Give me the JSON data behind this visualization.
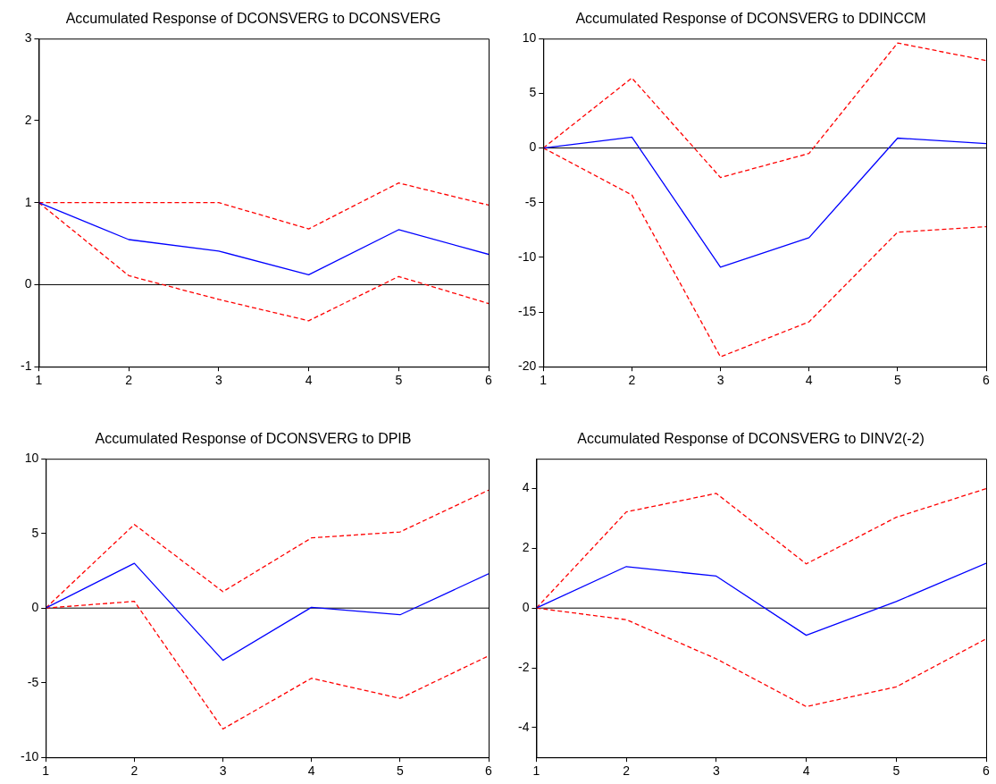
{
  "chart_data": [
    {
      "type": "line",
      "title": "Accumulated Response of DCONSVERG to DCONSVERG",
      "x": [
        1,
        2,
        3,
        4,
        5,
        6
      ],
      "xlim": [
        1,
        6
      ],
      "xticks": [
        1,
        2,
        3,
        4,
        5,
        6
      ],
      "ylim": [
        -1,
        3
      ],
      "yticks": [
        -1,
        0,
        1,
        2,
        3
      ],
      "grid": false,
      "legend": false,
      "ref_lines": [
        {
          "axis": "y",
          "value": 0,
          "color": "#000000"
        }
      ],
      "series": [
        {
          "color": "#0000ff",
          "line_style": "solid",
          "values": [
            1,
            0.55,
            0.41,
            0.12,
            0.67,
            0.37
          ]
        },
        {
          "color": "#ff0000",
          "line_style": "dashed",
          "values": [
            1,
            1,
            1,
            0.68,
            1.24,
            0.97
          ]
        },
        {
          "color": "#ff0000",
          "line_style": "dashed",
          "values": [
            1,
            0.11,
            -0.18,
            -0.44,
            0.1,
            -0.23
          ]
        }
      ]
    },
    {
      "type": "line",
      "title": "Accumulated Response of DCONSVERG to DDINCCM",
      "x": [
        1,
        2,
        3,
        4,
        5,
        6
      ],
      "xlim": [
        1,
        6
      ],
      "xticks": [
        1,
        2,
        3,
        4,
        5,
        6
      ],
      "ylim": [
        -20,
        10
      ],
      "yticks": [
        -20,
        -15,
        -10,
        -5,
        0,
        5,
        10
      ],
      "grid": false,
      "legend": false,
      "ref_lines": [
        {
          "axis": "y",
          "value": 0,
          "color": "#000000"
        }
      ],
      "series": [
        {
          "color": "#0000ff",
          "line_style": "solid",
          "values": [
            0,
            1,
            -10.9,
            -8.2,
            0.9,
            0.4
          ]
        },
        {
          "color": "#ff0000",
          "line_style": "dashed",
          "values": [
            0,
            6.4,
            -2.7,
            -0.5,
            9.6,
            8
          ]
        },
        {
          "color": "#ff0000",
          "line_style": "dashed",
          "values": [
            0,
            -4.3,
            -19.1,
            -15.9,
            -7.7,
            -7.2
          ]
        }
      ]
    },
    {
      "type": "line",
      "title": "Accumulated Response of DCONSVERG to DPIB",
      "x": [
        1,
        2,
        3,
        4,
        5,
        6
      ],
      "xlim": [
        1,
        6
      ],
      "xticks": [
        1,
        2,
        3,
        4,
        5,
        6
      ],
      "ylim": [
        -10,
        10
      ],
      "yticks": [
        -10,
        -5,
        0,
        5,
        10
      ],
      "grid": false,
      "legend": false,
      "ref_lines": [
        {
          "axis": "y",
          "value": 0,
          "color": "#000000"
        }
      ],
      "series": [
        {
          "color": "#0000ff",
          "line_style": "solid",
          "values": [
            0,
            3,
            -3.5,
            0.05,
            -0.45,
            2.3
          ]
        },
        {
          "color": "#ff0000",
          "line_style": "dashed",
          "values": [
            0,
            5.6,
            1.1,
            4.7,
            5.1,
            7.9
          ]
        },
        {
          "color": "#ff0000",
          "line_style": "dashed",
          "values": [
            0,
            0.45,
            -8.1,
            -4.7,
            -6.05,
            -3.2
          ]
        }
      ]
    },
    {
      "type": "line",
      "title": "Accumulated Response of DCONSVERG to DINV2(-2)",
      "x": [
        1,
        2,
        3,
        4,
        5,
        6
      ],
      "xlim": [
        1,
        6
      ],
      "xticks": [
        1,
        2,
        3,
        4,
        5,
        6
      ],
      "ylim": [
        -5,
        5
      ],
      "yticks": [
        -4,
        -2,
        0,
        2,
        4
      ],
      "grid": false,
      "legend": false,
      "ref_lines": [
        {
          "axis": "y",
          "value": 0,
          "color": "#000000"
        }
      ],
      "series": [
        {
          "color": "#0000ff",
          "line_style": "solid",
          "values": [
            0,
            1.39,
            1.07,
            -0.91,
            0.22,
            1.5
          ]
        },
        {
          "color": "#ff0000",
          "line_style": "dashed",
          "values": [
            0,
            3.22,
            3.84,
            1.48,
            3.04,
            4
          ]
        },
        {
          "color": "#ff0000",
          "line_style": "dashed",
          "values": [
            0,
            -0.39,
            -1.7,
            -3.3,
            -2.64,
            -1.03
          ]
        }
      ]
    }
  ]
}
